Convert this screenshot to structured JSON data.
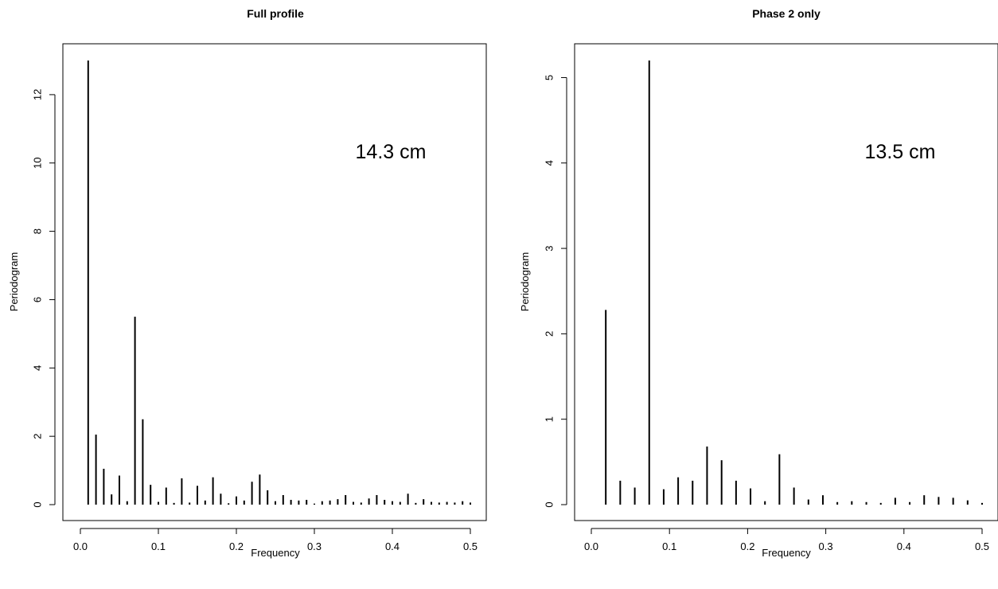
{
  "chart_data": [
    {
      "type": "bar",
      "subtype": "periodogram-spikes",
      "title": "Full profile",
      "xlabel": "Frequency",
      "ylabel": "Periodogram",
      "annotation": "14.3 cm",
      "xlim": [
        0.0,
        0.5
      ],
      "ylim": [
        0,
        13
      ],
      "xticks": [
        "0.0",
        "0.1",
        "0.2",
        "0.3",
        "0.4",
        "0.5"
      ],
      "yticks": [
        "0",
        "2",
        "4",
        "6",
        "8",
        "10",
        "12"
      ],
      "grid": false,
      "x": [
        0.01,
        0.02,
        0.03,
        0.04,
        0.05,
        0.06,
        0.07,
        0.08,
        0.09,
        0.1,
        0.11,
        0.12,
        0.13,
        0.14,
        0.15,
        0.16,
        0.17,
        0.18,
        0.19,
        0.2,
        0.21,
        0.22,
        0.23,
        0.24,
        0.25,
        0.26,
        0.27,
        0.28,
        0.29,
        0.3,
        0.31,
        0.32,
        0.33,
        0.34,
        0.35,
        0.36,
        0.37,
        0.38,
        0.39,
        0.4,
        0.41,
        0.42,
        0.43,
        0.44,
        0.45,
        0.46,
        0.47,
        0.48,
        0.49,
        0.5
      ],
      "values": [
        13.0,
        2.05,
        1.05,
        0.3,
        0.85,
        0.1,
        5.5,
        2.5,
        0.58,
        0.08,
        0.5,
        0.05,
        0.77,
        0.06,
        0.55,
        0.12,
        0.8,
        0.32,
        0.04,
        0.24,
        0.12,
        0.67,
        0.88,
        0.42,
        0.1,
        0.28,
        0.14,
        0.12,
        0.14,
        0.03,
        0.1,
        0.12,
        0.16,
        0.28,
        0.08,
        0.06,
        0.18,
        0.28,
        0.14,
        0.1,
        0.08,
        0.32,
        0.05,
        0.16,
        0.08,
        0.06,
        0.08,
        0.06,
        0.1,
        0.06
      ]
    },
    {
      "type": "bar",
      "subtype": "periodogram-spikes",
      "title": "Phase 2 only",
      "xlabel": "Frequency",
      "ylabel": "Periodogram",
      "annotation": "13.5 cm",
      "xlim": [
        0.0,
        0.5
      ],
      "ylim": [
        0,
        5.2
      ],
      "xticks": [
        "0.0",
        "0.1",
        "0.2",
        "0.3",
        "0.4",
        "0.5"
      ],
      "yticks": [
        "0",
        "1",
        "2",
        "3",
        "4",
        "5"
      ],
      "grid": false,
      "x": [
        0.0185,
        0.037,
        0.0556,
        0.0741,
        0.0926,
        0.1111,
        0.1296,
        0.1481,
        0.1667,
        0.1852,
        0.2037,
        0.2222,
        0.2407,
        0.2593,
        0.2778,
        0.2963,
        0.3148,
        0.3333,
        0.3519,
        0.3704,
        0.3889,
        0.4074,
        0.4259,
        0.4444,
        0.463,
        0.4815,
        0.5
      ],
      "values": [
        2.28,
        0.28,
        0.2,
        5.2,
        0.18,
        0.32,
        0.28,
        0.68,
        0.52,
        0.28,
        0.19,
        0.04,
        0.59,
        0.2,
        0.06,
        0.11,
        0.03,
        0.04,
        0.03,
        0.02,
        0.08,
        0.03,
        0.11,
        0.09,
        0.08,
        0.05,
        0.02
      ]
    }
  ]
}
